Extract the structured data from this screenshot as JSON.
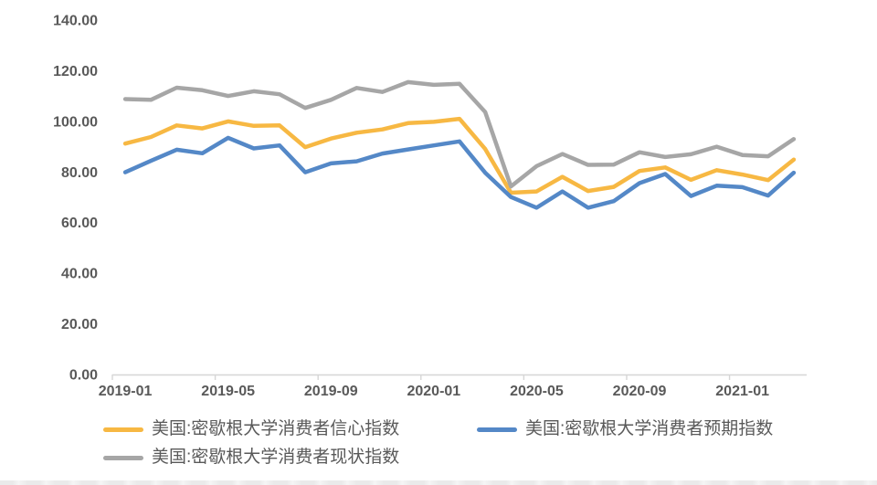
{
  "chart_data": {
    "type": "line",
    "title": "",
    "grid": false,
    "legend_position": "bottom",
    "x_categories": [
      "2019-01",
      "2019-02",
      "2019-03",
      "2019-04",
      "2019-05",
      "2019-06",
      "2019-07",
      "2019-08",
      "2019-09",
      "2019-10",
      "2019-11",
      "2019-12",
      "2020-01",
      "2020-02",
      "2020-03",
      "2020-04",
      "2020-05",
      "2020-06",
      "2020-07",
      "2020-08",
      "2020-09",
      "2020-10",
      "2020-11",
      "2020-12",
      "2021-01",
      "2021-02",
      "2021-03"
    ],
    "x_axis": {
      "tick_labels": [
        "2019-01",
        "2019-05",
        "2019-09",
        "2020-01",
        "2020-05",
        "2020-09",
        "2021-01"
      ],
      "tick_indices": [
        0,
        4,
        8,
        12,
        16,
        20,
        24
      ]
    },
    "y_axis": {
      "min": 0,
      "max": 140,
      "tick_values": [
        0,
        20,
        40,
        60,
        80,
        100,
        120,
        140
      ],
      "tick_labels": [
        "0.00",
        "20.00",
        "40.00",
        "60.00",
        "80.00",
        "100.00",
        "120.00",
        "140.00"
      ]
    },
    "series": [
      {
        "name": "美国:密歇根大学消费者信心指数",
        "color": "#F7B843",
        "values": [
          91.2,
          93.8,
          98.4,
          97.2,
          100.0,
          98.2,
          98.4,
          89.8,
          93.2,
          95.5,
          96.8,
          99.3,
          99.8,
          101.0,
          89.1,
          71.8,
          72.3,
          78.1,
          72.5,
          74.1,
          80.4,
          81.8,
          76.9,
          80.7,
          79.0,
          76.8,
          84.9
        ]
      },
      {
        "name": "美国:密歇根大学消费者预期指数",
        "color": "#5488C7",
        "values": [
          79.9,
          84.4,
          88.8,
          87.4,
          93.5,
          89.3,
          90.5,
          79.9,
          83.4,
          84.2,
          87.3,
          88.9,
          90.5,
          92.1,
          79.7,
          70.1,
          65.9,
          72.3,
          65.9,
          68.5,
          75.6,
          79.2,
          70.5,
          74.6,
          74.0,
          70.7,
          79.7
        ]
      },
      {
        "name": "美国:密歇根大学消费者现状指数",
        "color": "#A6A6A6",
        "values": [
          108.8,
          108.5,
          113.3,
          112.3,
          110.0,
          111.9,
          110.7,
          105.3,
          108.5,
          113.2,
          111.6,
          115.5,
          114.4,
          114.8,
          103.7,
          74.3,
          82.3,
          87.1,
          82.8,
          82.9,
          87.8,
          85.9,
          87.0,
          90.0,
          86.7,
          86.2,
          93.0
        ]
      }
    ],
    "colors": {
      "axis_line": "#D6D6D6",
      "axis_text": "#595959",
      "background": "#FFFFFF"
    }
  }
}
